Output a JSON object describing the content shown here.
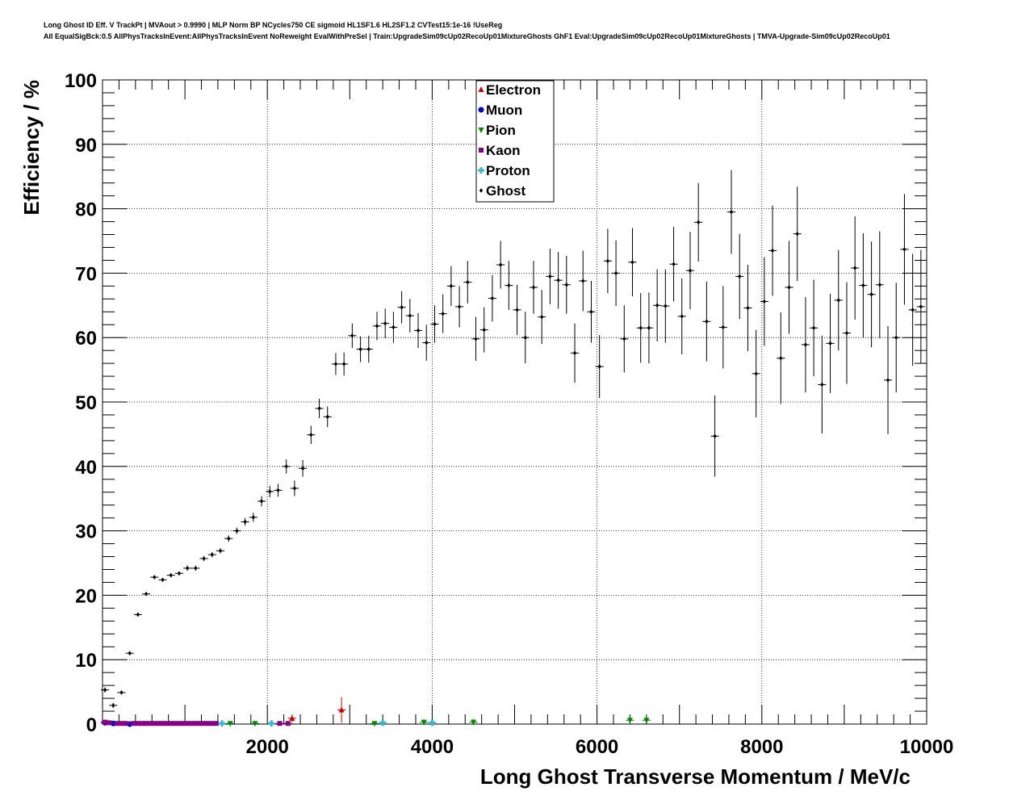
{
  "header": {
    "line1": "Long Ghost ID Eff. V TrackPt | MVAout > 0.9990 | MLP Norm BP NCycles750 CE sigmoid HL1SF1.6 HL2SF1.2 CVTest15:1e-16 !UseReg",
    "line2": "All EqualSigBck:0.5 AllPhysTracksInEvent:AllPhysTracksInEvent NoReweight EvalWithPreSel | Train:UpgradeSim09cUp02RecoUp01MixtureGhosts GhF1 Eval:UpgradeSim09cUp02RecoUp01MixtureGhosts | TMVA-Upgrade-Sim09cUp02RecoUp01"
  },
  "chart_data": {
    "type": "scatter",
    "title": "",
    "xlabel": "Long Ghost Transverse Momentum / MeV/c",
    "ylabel": "Efficiency / %",
    "xlim": [
      0,
      10000
    ],
    "ylim": [
      0,
      100
    ],
    "xticks": [
      2000,
      4000,
      6000,
      8000,
      10000
    ],
    "yticks": [
      0,
      10,
      20,
      30,
      40,
      50,
      60,
      70,
      80,
      90,
      100
    ],
    "grid": true,
    "legend_position": "top-center",
    "series": [
      {
        "name": "Electron",
        "color": "#cc0000",
        "marker": "triangle-up",
        "points": [
          [
            2300,
            0.9,
            0.6
          ],
          [
            2900,
            2.2,
            2.0
          ]
        ]
      },
      {
        "name": "Muon",
        "color": "#0000cc",
        "marker": "circle",
        "points": [
          [
            30,
            0.2,
            0.3
          ],
          [
            130,
            0.1,
            0.2
          ],
          [
            330,
            0.0,
            0.2
          ]
        ]
      },
      {
        "name": "Pion",
        "color": "#008800",
        "marker": "triangle-down",
        "points": [
          [
            1550,
            0.1,
            0.3
          ],
          [
            1850,
            0.1,
            0.3
          ],
          [
            3300,
            0.1,
            0.3
          ],
          [
            3900,
            0.3,
            0.4
          ],
          [
            4500,
            0.3,
            0.5
          ],
          [
            6400,
            0.6,
            0.4
          ],
          [
            6600,
            0.6,
            0.4
          ]
        ]
      },
      {
        "name": "Kaon",
        "color": "#880088",
        "marker": "square",
        "points": [
          [
            30,
            0.3,
            0.2
          ],
          [
            80,
            0.2,
            0.2
          ],
          [
            180,
            0.1,
            0.2
          ],
          [
            230,
            0.1,
            0.2
          ],
          [
            280,
            0.1,
            0.2
          ],
          [
            380,
            0.1,
            0.2
          ],
          [
            430,
            0.1,
            0.2
          ],
          [
            480,
            0.1,
            0.2
          ],
          [
            530,
            0.1,
            0.2
          ],
          [
            580,
            0.1,
            0.2
          ],
          [
            630,
            0.1,
            0.2
          ],
          [
            680,
            0.1,
            0.2
          ],
          [
            730,
            0.1,
            0.2
          ],
          [
            780,
            0.1,
            0.2
          ],
          [
            830,
            0.1,
            0.2
          ],
          [
            880,
            0.1,
            0.2
          ],
          [
            930,
            0.1,
            0.2
          ],
          [
            980,
            0.1,
            0.2
          ],
          [
            1030,
            0.1,
            0.2
          ],
          [
            1080,
            0.1,
            0.2
          ],
          [
            1130,
            0.1,
            0.2
          ],
          [
            1180,
            0.1,
            0.2
          ],
          [
            1230,
            0.1,
            0.2
          ],
          [
            1280,
            0.1,
            0.2
          ],
          [
            1330,
            0.1,
            0.2
          ],
          [
            1380,
            0.1,
            0.2
          ],
          [
            2150,
            0.1,
            0.2
          ],
          [
            2250,
            0.1,
            0.2
          ]
        ]
      },
      {
        "name": "Proton",
        "color": "#33bbcc",
        "marker": "cross",
        "points": [
          [
            1450,
            0.1,
            0.2
          ],
          [
            2050,
            0.1,
            0.2
          ],
          [
            3400,
            0.2,
            0.3
          ],
          [
            4000,
            0.2,
            0.3
          ]
        ]
      },
      {
        "name": "Ghost",
        "color": "#000000",
        "marker": "diamond",
        "points": [
          [
            30,
            5.3,
            0.4
          ],
          [
            130,
            2.9,
            0.4
          ],
          [
            230,
            4.9,
            0.3
          ],
          [
            330,
            11.0,
            0.3
          ],
          [
            430,
            17.0,
            0.3
          ],
          [
            530,
            20.2,
            0.3
          ],
          [
            630,
            22.8,
            0.3
          ],
          [
            730,
            22.4,
            0.3
          ],
          [
            830,
            23.1,
            0.3
          ],
          [
            930,
            23.4,
            0.3
          ],
          [
            1030,
            24.2,
            0.4
          ],
          [
            1130,
            24.2,
            0.4
          ],
          [
            1230,
            25.7,
            0.4
          ],
          [
            1330,
            26.3,
            0.4
          ],
          [
            1430,
            26.9,
            0.4
          ],
          [
            1530,
            28.8,
            0.5
          ],
          [
            1630,
            30.0,
            0.5
          ],
          [
            1730,
            31.4,
            0.6
          ],
          [
            1830,
            32.1,
            0.7
          ],
          [
            1930,
            34.6,
            0.8
          ],
          [
            2030,
            36.1,
            0.9
          ],
          [
            2130,
            36.3,
            1.0
          ],
          [
            2230,
            40.0,
            1.1
          ],
          [
            2330,
            36.6,
            1.2
          ],
          [
            2430,
            39.7,
            1.3
          ],
          [
            2530,
            44.9,
            1.4
          ],
          [
            2630,
            49.0,
            1.5
          ],
          [
            2730,
            47.7,
            1.6
          ],
          [
            2830,
            55.9,
            1.7
          ],
          [
            2930,
            55.9,
            1.8
          ],
          [
            3030,
            60.3,
            1.9
          ],
          [
            3130,
            58.2,
            2.0
          ],
          [
            3230,
            58.2,
            2.1
          ],
          [
            3330,
            61.8,
            2.2
          ],
          [
            3430,
            62.2,
            2.3
          ],
          [
            3530,
            61.6,
            2.4
          ],
          [
            3630,
            64.7,
            2.5
          ],
          [
            3730,
            63.4,
            2.6
          ],
          [
            3830,
            61.1,
            2.7
          ],
          [
            3930,
            59.2,
            2.8
          ],
          [
            4030,
            62.1,
            2.9
          ],
          [
            4130,
            63.7,
            3.0
          ],
          [
            4230,
            68.0,
            3.1
          ],
          [
            4330,
            64.8,
            3.2
          ],
          [
            4430,
            68.6,
            3.3
          ],
          [
            4530,
            59.8,
            3.4
          ],
          [
            4630,
            61.2,
            3.5
          ],
          [
            4730,
            66.1,
            3.6
          ],
          [
            4830,
            71.3,
            3.7
          ],
          [
            4930,
            68.1,
            3.8
          ],
          [
            5030,
            64.3,
            3.9
          ],
          [
            5130,
            60.0,
            4.0
          ],
          [
            5230,
            67.8,
            4.1
          ],
          [
            5330,
            63.2,
            4.2
          ],
          [
            5430,
            69.5,
            4.3
          ],
          [
            5530,
            68.9,
            4.4
          ],
          [
            5630,
            68.2,
            4.5
          ],
          [
            5730,
            57.6,
            4.6
          ],
          [
            5830,
            68.8,
            4.7
          ],
          [
            5930,
            64.0,
            4.8
          ],
          [
            6030,
            55.5,
            4.9
          ],
          [
            6130,
            71.9,
            5.0
          ],
          [
            6230,
            70.0,
            5.1
          ],
          [
            6330,
            59.8,
            5.2
          ],
          [
            6430,
            71.7,
            5.3
          ],
          [
            6530,
            61.5,
            5.4
          ],
          [
            6630,
            61.5,
            5.5
          ],
          [
            6730,
            65.0,
            5.6
          ],
          [
            6830,
            64.9,
            5.7
          ],
          [
            6930,
            71.4,
            5.8
          ],
          [
            7030,
            63.3,
            5.9
          ],
          [
            7130,
            70.4,
            6.0
          ],
          [
            7230,
            77.9,
            6.1
          ],
          [
            7330,
            62.5,
            6.2
          ],
          [
            7430,
            44.7,
            6.3
          ],
          [
            7530,
            61.6,
            6.4
          ],
          [
            7630,
            79.5,
            6.5
          ],
          [
            7730,
            69.5,
            6.6
          ],
          [
            7830,
            64.6,
            6.7
          ],
          [
            7930,
            54.4,
            6.8
          ],
          [
            8030,
            65.6,
            6.9
          ],
          [
            8130,
            73.5,
            7.0
          ],
          [
            8230,
            56.8,
            7.1
          ],
          [
            8330,
            67.8,
            7.2
          ],
          [
            8430,
            76.1,
            7.3
          ],
          [
            8530,
            58.9,
            7.4
          ],
          [
            8630,
            61.5,
            7.5
          ],
          [
            8730,
            52.7,
            7.6
          ],
          [
            8830,
            59.1,
            7.7
          ],
          [
            8930,
            65.8,
            7.8
          ],
          [
            9030,
            60.7,
            7.9
          ],
          [
            9130,
            70.8,
            8.0
          ],
          [
            9230,
            68.1,
            8.1
          ],
          [
            9330,
            66.7,
            8.2
          ],
          [
            9430,
            68.2,
            8.3
          ],
          [
            9530,
            53.4,
            8.4
          ],
          [
            9630,
            60.0,
            8.5
          ],
          [
            9730,
            73.7,
            8.6
          ],
          [
            9830,
            64.3,
            8.7
          ],
          [
            9930,
            64.8,
            8.8
          ]
        ]
      }
    ]
  }
}
